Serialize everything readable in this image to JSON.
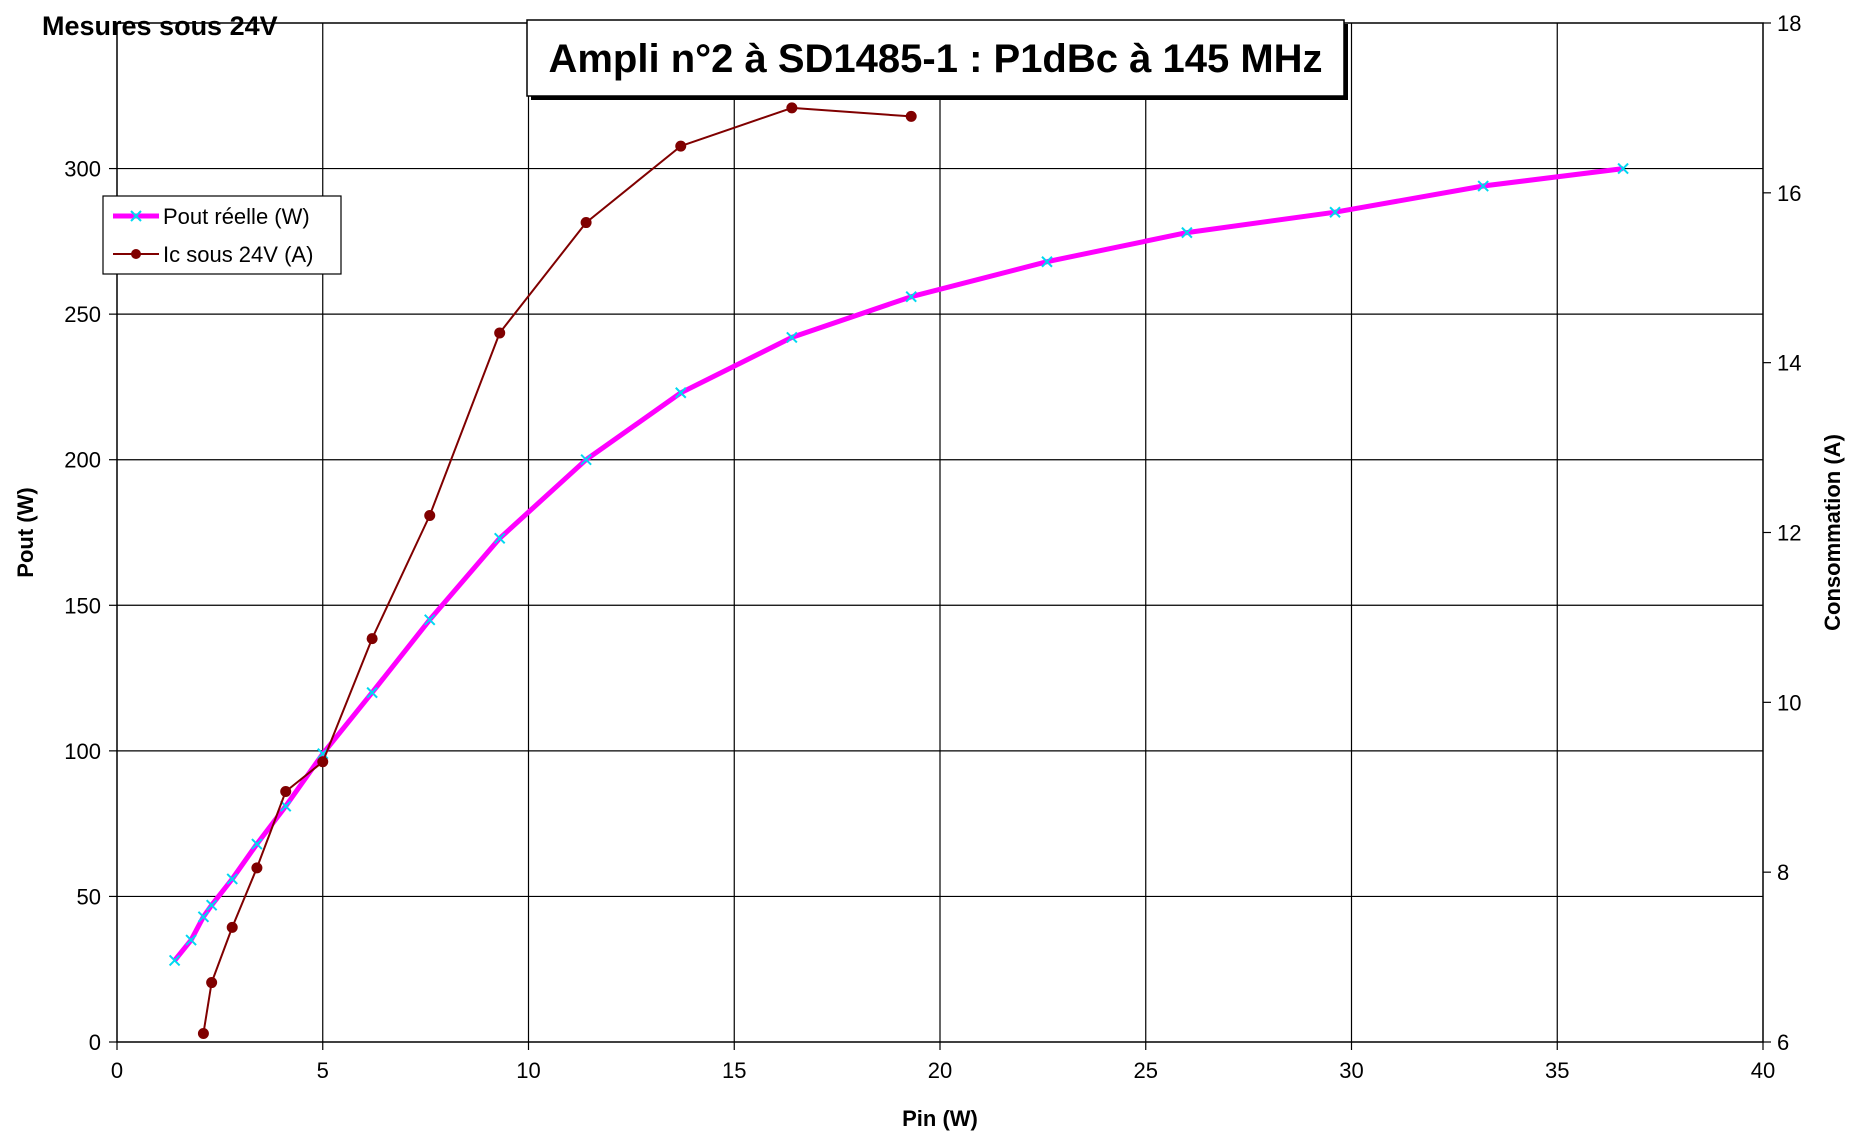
{
  "chart_data": {
    "type": "line",
    "title": "Ampli n°2 à SD1485-1 : P1dBc à 145 MHz",
    "subtitle": "Mesures sous 24V",
    "xlabel": "Pin (W)",
    "ylabel": "Pout (W)",
    "y2label": "Consommation (A)",
    "xlim": [
      0,
      40
    ],
    "ylim": [
      0,
      350
    ],
    "y2lim": [
      6,
      18
    ],
    "xticks": [
      "0",
      "5",
      "10",
      "15",
      "20",
      "25",
      "30",
      "35",
      "40"
    ],
    "yticks": [
      "0",
      "50",
      "100",
      "150",
      "200",
      "250",
      "300"
    ],
    "y2ticks": [
      "6",
      "8",
      "10",
      "12",
      "14",
      "16",
      "18"
    ],
    "grid": true,
    "legend_position": "top-left",
    "series": [
      {
        "name": "Pout réelle (W)",
        "axis": "left",
        "color": "#ff00ff",
        "marker_color": "#00d8f0",
        "marker": "x",
        "x": [
          1.4,
          1.8,
          2.1,
          2.3,
          2.8,
          3.4,
          4.1,
          5.0,
          6.2,
          7.6,
          9.3,
          11.4,
          13.7,
          16.4,
          19.3,
          22.6,
          26.0,
          29.6,
          33.2,
          36.6
        ],
        "y": [
          28,
          35,
          43,
          47,
          56,
          68,
          81,
          99,
          120,
          145,
          173,
          200,
          223,
          242,
          256,
          268,
          278,
          285,
          294,
          300
        ]
      },
      {
        "name": "Ic sous 24V (A)",
        "axis": "right",
        "color": "#800000",
        "marker": "circle",
        "x": [
          2.1,
          2.3,
          2.8,
          3.4,
          4.1,
          5.0,
          6.2,
          7.6,
          9.3,
          11.4,
          13.7,
          16.4,
          19.3
        ],
        "y": [
          6.1,
          6.7,
          7.35,
          8.05,
          8.95,
          9.3,
          10.75,
          12.2,
          14.35,
          15.65,
          16.55,
          17.0,
          16.9
        ]
      }
    ]
  }
}
